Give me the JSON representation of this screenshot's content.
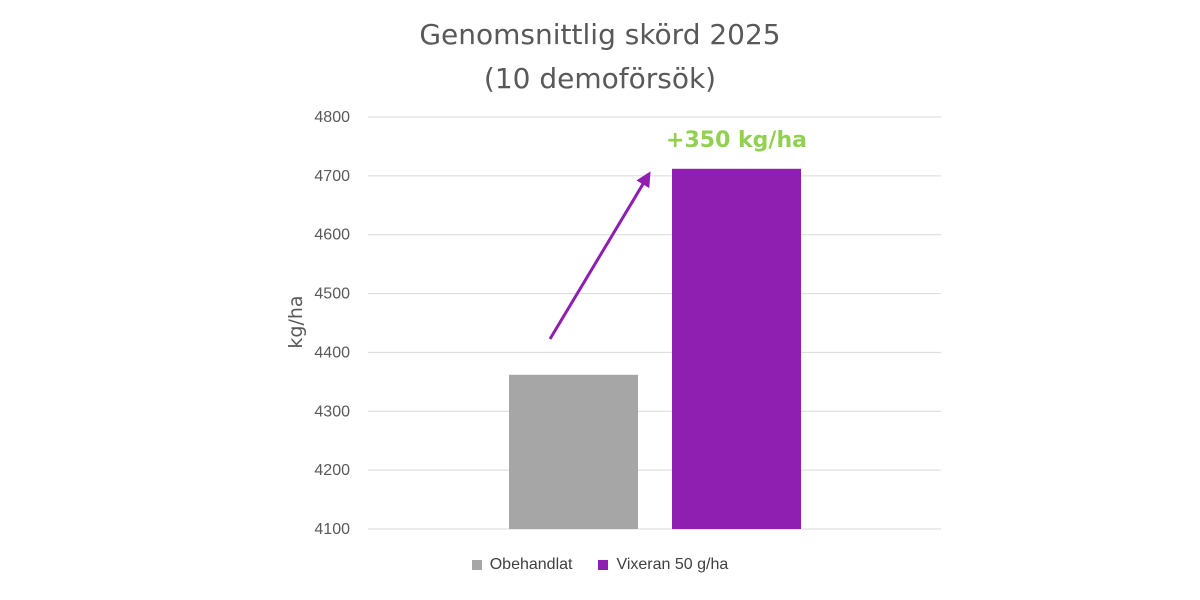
{
  "chart_data": {
    "type": "bar",
    "title_line1": "Genomsnittlig skörd 2025",
    "title_line2": "(10 demoförsök)",
    "ylabel": "kg/ha",
    "xlabel": "",
    "ylim": [
      4100,
      4800
    ],
    "yticks": [
      4100,
      4200,
      4300,
      4400,
      4500,
      4600,
      4700,
      4800
    ],
    "grid": true,
    "legend_placement": "bottom",
    "series": [
      {
        "name": "Obehandlat",
        "value": 4362,
        "color": "#a6a6a6"
      },
      {
        "name": "Vixeran 50 g/ha",
        "value": 4712,
        "color": "#8e1fb0"
      }
    ],
    "annotation": {
      "text": "+350 kg/ha",
      "color": "#92d050",
      "arrow_color": "#8e1fb0"
    }
  }
}
